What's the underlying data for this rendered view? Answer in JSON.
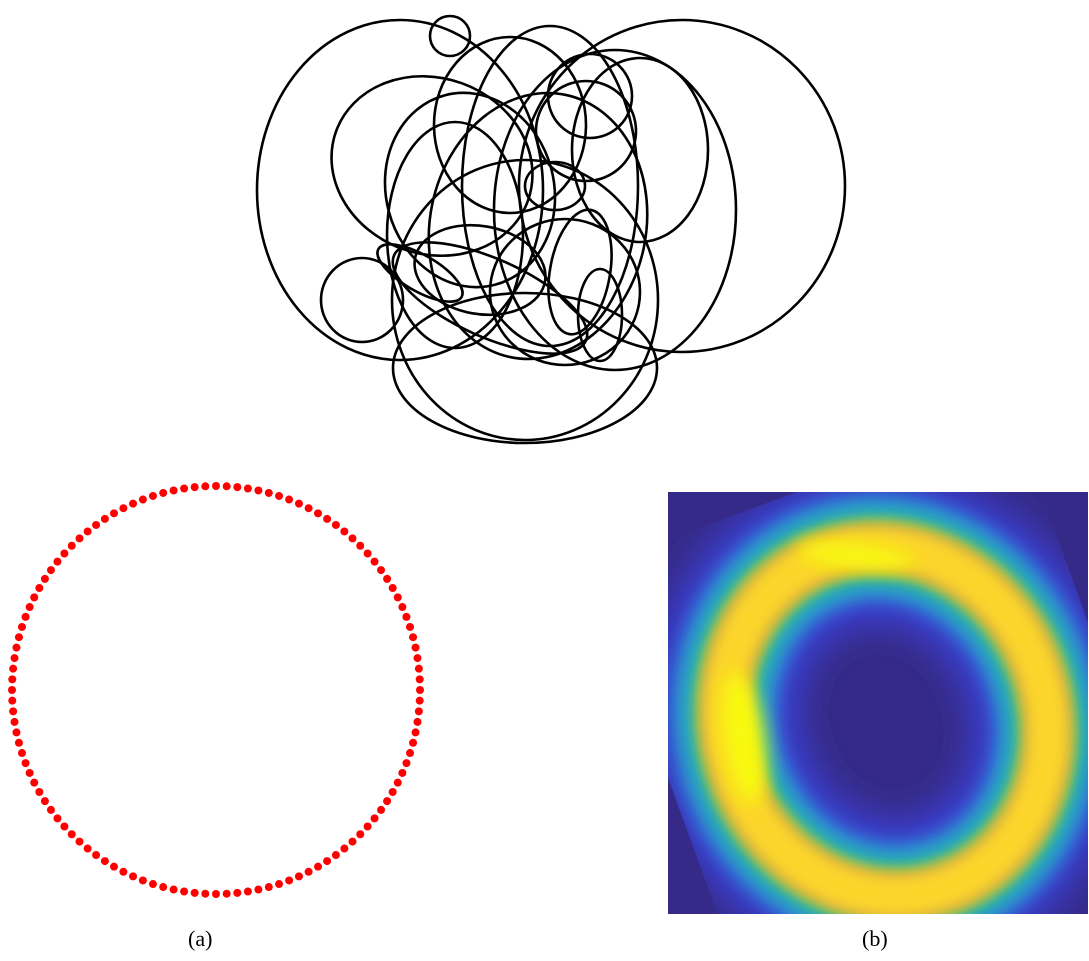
{
  "figure": {
    "captions": [
      "(a)",
      "(b)"
    ]
  },
  "panels": {
    "top": {
      "type": "overlapping-closed-curves",
      "stroke": "#000000",
      "count": 23
    },
    "a": {
      "type": "dotted-circle",
      "marker": "red-dot",
      "color": "#ff0000",
      "count": 120
    },
    "b": {
      "type": "heatmap",
      "shape": "ring",
      "colormap": [
        "#352a87",
        "#3a3fd4",
        "#2f8fd8",
        "#20b4aa",
        "#7cbf5e",
        "#e2b83a",
        "#fbd52c",
        "#f8fa0d"
      ]
    }
  }
}
